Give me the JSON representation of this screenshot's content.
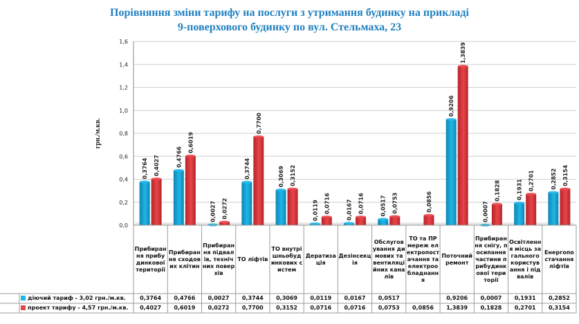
{
  "title": {
    "line1": "Порівняння зміни тарифу на послуги з утримання будинку на прикладі",
    "line2": "9-поверхового будинку по вул. Стельмаха, 23"
  },
  "colors": {
    "series1": "#1fb6e8",
    "series1_dark": "#0e86b3",
    "series2": "#e8454a",
    "series2_dark": "#b52429",
    "title": "#1f7fc0"
  },
  "chart_data": {
    "type": "bar",
    "title": "Порівняння зміни тарифу на послуги з утримання будинку на прикладі 9-поверхового будинку по вул. Стельмаха, 23",
    "ylabel": "грн./м.кв.",
    "xlabel": "",
    "ylim": [
      0,
      1.6
    ],
    "yticks": [
      "0,0",
      "0,2",
      "0,4",
      "0,6",
      "0,8",
      "1,0",
      "1,2",
      "1,4",
      "1,6"
    ],
    "grid": true,
    "legend": "table-left",
    "categories": [
      "Прибирання прибудинкової території",
      "Прибирання сходових клітин",
      "Прибирання підвалів, технічних поверхів",
      "ТО ліфтів",
      "ТО внутрішньобудинкових систем",
      "Дератизація",
      "Дезінсекція",
      "Обслуговування димових та вентиляційних каналів",
      "ТО та ПР мереж електропостачання та електрообладнання",
      "Поточний ремонт",
      "Прибирання снігу, посипання частини прибудинкової території",
      "Освітлення місць загального користування і підвалів",
      "Енергопостачання ліфтів"
    ],
    "series": [
      {
        "name": "діючий тариф - 3,02 грн./м.кв.",
        "values": [
          0.3764,
          0.4766,
          0.0027,
          0.3744,
          0.3069,
          0.0119,
          0.0167,
          0.0517,
          null,
          0.9206,
          0.0007,
          0.1931,
          0.2852
        ],
        "labels": [
          "0,3764",
          "0,4766",
          "0,0027",
          "0,3744",
          "0,3069",
          "0,0119",
          "0,0167",
          "0,0517",
          "",
          "0,9206",
          "0,0007",
          "0,1931",
          "0,2852"
        ]
      },
      {
        "name": "проект тарифу - 4,57 грн./м.кв.",
        "values": [
          0.4027,
          0.6019,
          0.0272,
          0.77,
          0.3152,
          0.0716,
          0.0716,
          0.0753,
          0.0856,
          1.3839,
          0.1828,
          0.2701,
          0.3154
        ],
        "labels": [
          "0,4027",
          "0,6019",
          "0,0272",
          "0,7700",
          "0,3152",
          "0,0716",
          "0,0716",
          "0,0753",
          "0,0856",
          "1,3839",
          "0,1828",
          "0,2701",
          "0,3154"
        ]
      }
    ]
  }
}
